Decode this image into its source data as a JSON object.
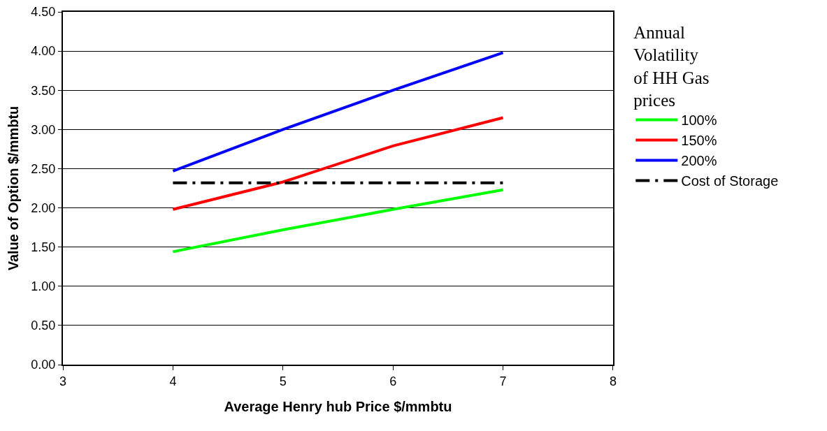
{
  "chart_data": {
    "type": "line",
    "xlabel": "Average Henry hub Price $/mmbtu",
    "ylabel": "Value of Option $/mmbtu",
    "legend_title": "Annual\nVolatility\nof HH Gas\nprices",
    "x": [
      4,
      5,
      6,
      7
    ],
    "series": [
      {
        "name": "100%",
        "color": "#00ff00",
        "values": [
          1.44,
          1.72,
          1.98,
          2.23
        ]
      },
      {
        "name": "150%",
        "color": "#ff0000",
        "values": [
          1.98,
          2.33,
          2.79,
          3.15
        ]
      },
      {
        "name": "200%",
        "color": "#0000ff",
        "values": [
          2.47,
          3.0,
          3.5,
          3.98
        ]
      },
      {
        "name": "Cost of Storage",
        "color": "#000000",
        "x": [
          4,
          7
        ],
        "values": [
          2.32,
          2.32
        ],
        "line_style": "dashed"
      }
    ],
    "xlim": [
      3,
      8
    ],
    "xticks": [
      3,
      4,
      5,
      6,
      7,
      8
    ],
    "ylim": [
      0,
      4.5
    ],
    "yticks": [
      {
        "value": 0,
        "label": "0.00"
      },
      {
        "value": 0.5,
        "label": "0.50"
      },
      {
        "value": 1,
        "label": "1.00"
      },
      {
        "value": 1.5,
        "label": "1.50"
      },
      {
        "value": 2,
        "label": "2.00"
      },
      {
        "value": 2.5,
        "label": "2.50"
      },
      {
        "value": 3,
        "label": "3.00"
      },
      {
        "value": 3.5,
        "label": "3.50"
      },
      {
        "value": 4,
        "label": "4.00"
      },
      {
        "value": 4.5,
        "label": "4.50"
      }
    ],
    "grid": "y",
    "legend": "right",
    "marker": "none",
    "line_style": "solid"
  }
}
